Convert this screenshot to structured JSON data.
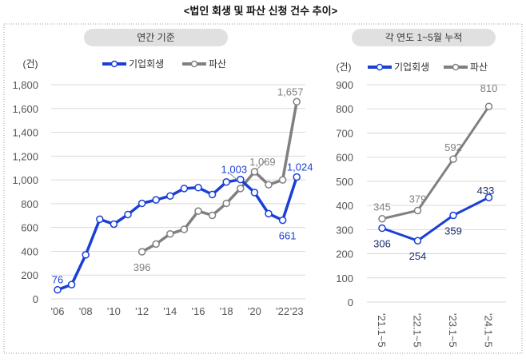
{
  "title": "<법인 회생 및 파산 신청 건수 추이>",
  "colors": {
    "rehab": "#1a3fd6",
    "bankrupt": "#808080",
    "rehab_label_right": "#1a2e6e",
    "grid": "#d9d9d9",
    "pill": "#e0e0e0"
  },
  "chart_data": [
    {
      "type": "line",
      "header": "연간 기준",
      "unit": "(건)",
      "categories": [
        "2006",
        "2007",
        "2008",
        "2009",
        "2010",
        "2011",
        "2012",
        "2013",
        "2014",
        "2015",
        "2016",
        "2017",
        "2018",
        "2019",
        "2020",
        "2021",
        "2022",
        "2023"
      ],
      "tick_labels": [
        "'06",
        "",
        "'08",
        "",
        "'10",
        "",
        "'12",
        "",
        "'14",
        "",
        "'16",
        "",
        "'18",
        "",
        "'20",
        "",
        "'22",
        "'23"
      ],
      "ylim": [
        0,
        1800
      ],
      "yticks": [
        "0",
        "200",
        "400",
        "600",
        "800",
        "1,000",
        "1,200",
        "1,400",
        "1,600",
        "1,800"
      ],
      "grid": true,
      "legend": "top",
      "series": [
        {
          "name": "기업회생",
          "values": [
            76,
            120,
            370,
            669,
            628,
            709,
            803,
            832,
            865,
            928,
            935,
            877,
            982,
            1003,
            894,
            716,
            661,
            1024
          ],
          "labels": {
            "0": "76",
            "13": "1,003",
            "16": "661",
            "17": "1,024"
          }
        },
        {
          "name": "파산",
          "values": [
            null,
            null,
            null,
            null,
            null,
            null,
            396,
            461,
            546,
            584,
            738,
            702,
            803,
            928,
            1069,
            959,
            1000,
            1657
          ],
          "labels": {
            "6": "396",
            "14": "1,069",
            "17": "1,657"
          }
        }
      ]
    },
    {
      "type": "line",
      "header": "각 연도 1~5월 누적",
      "unit": "(건)",
      "categories": [
        "'21.1~5",
        "'22.1~5",
        "'23.1~5",
        "'24.1~5"
      ],
      "ylim": [
        0,
        900
      ],
      "yticks": [
        "0",
        "100",
        "200",
        "300",
        "400",
        "500",
        "600",
        "700",
        "800",
        "900"
      ],
      "grid": true,
      "legend": "top",
      "series": [
        {
          "name": "기업회생",
          "values": [
            306,
            254,
            359,
            433
          ],
          "labels": {
            "0": "306",
            "1": "254",
            "2": "359",
            "3": "433"
          }
        },
        {
          "name": "파산",
          "values": [
            345,
            379,
            592,
            810
          ],
          "labels": {
            "0": "345",
            "1": "379",
            "2": "592",
            "3": "810"
          }
        }
      ]
    }
  ]
}
